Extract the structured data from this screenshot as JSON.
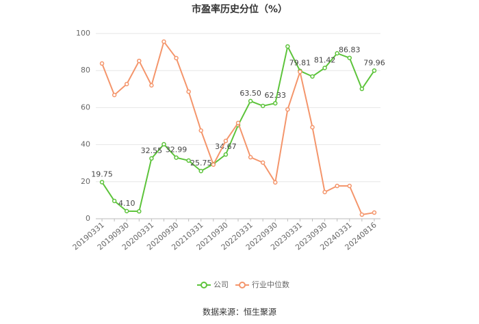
{
  "chart_data": {
    "type": "line",
    "title": "市盈率历史分位（%）",
    "categories": [
      "20190331",
      null,
      "20190930",
      null,
      "20200331",
      null,
      "20200930",
      null,
      "20210331",
      null,
      "20210930",
      null,
      "20220331",
      null,
      "20220930",
      null,
      "20230331",
      null,
      "20230930",
      null,
      "20240331",
      null,
      "20240816"
    ],
    "series": [
      {
        "name": "公司",
        "color": "#5cc33a",
        "values": [
          19.75,
          9.6,
          4.1,
          4.0,
          32.55,
          40.2,
          32.99,
          31.4,
          25.75,
          29.5,
          34.67,
          50.5,
          63.5,
          60.9,
          62.33,
          93.0,
          79.81,
          76.8,
          81.42,
          89.3,
          86.83,
          70.1,
          79.96
        ],
        "value_labels": [
          "19.75",
          null,
          "4.10",
          null,
          "32.55",
          null,
          "32.99",
          null,
          "25.75",
          null,
          "34.67",
          null,
          "63.50",
          null,
          "62.33",
          null,
          "79.81",
          null,
          "81.42",
          null,
          "86.83",
          null,
          "79.96"
        ]
      },
      {
        "name": "行业中位数",
        "color": "#f4956b",
        "values": [
          83.8,
          66.8,
          72.7,
          85.2,
          72.0,
          95.6,
          86.7,
          68.6,
          47.6,
          29.2,
          42.0,
          51.7,
          33.2,
          30.3,
          19.6,
          59.0,
          79.3,
          49.4,
          14.4,
          17.7,
          17.7,
          2.2,
          3.3
        ]
      }
    ],
    "ylim": [
      0,
      100
    ],
    "yticks": [
      0,
      20,
      40,
      60,
      80,
      100
    ],
    "grid": true,
    "legend": "bottom",
    "source": "数据来源：恒生聚源"
  }
}
